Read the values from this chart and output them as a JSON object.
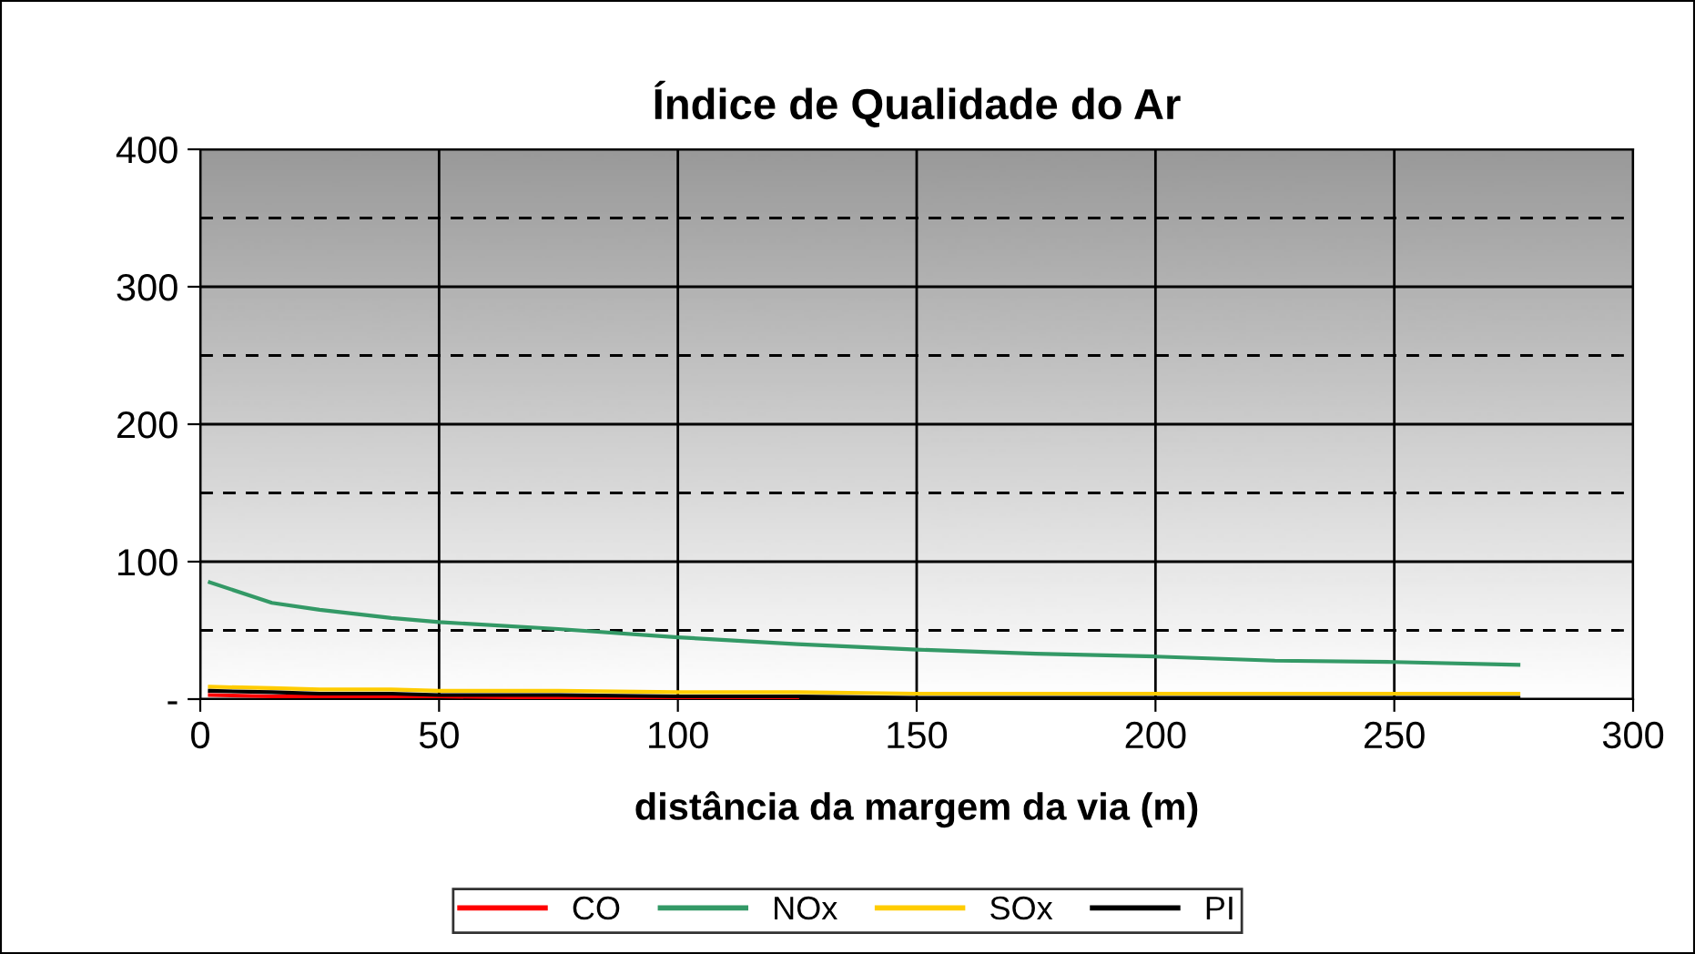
{
  "chart_data": {
    "type": "line",
    "title": "Índice de Qualidade do Ar",
    "xlabel": "distância da margem da via (m)",
    "xlim": [
      0,
      300
    ],
    "xticks": [
      0,
      50,
      100,
      150,
      200,
      250,
      300
    ],
    "ylim": [
      0,
      400
    ],
    "yticks": [
      {
        "value": 0,
        "label": "-"
      },
      100,
      200,
      300,
      400
    ],
    "grid": true,
    "legend": "bottom",
    "marker": "none",
    "line_style": "solid",
    "ref_lines": [
      {
        "axis": "y",
        "value": 50,
        "line_style": "dashed",
        "color": "#000000"
      },
      {
        "axis": "y",
        "value": 150,
        "line_style": "dashed",
        "color": "#000000"
      },
      {
        "axis": "y",
        "value": 250,
        "line_style": "dashed",
        "color": "#000000"
      },
      {
        "axis": "y",
        "value": 350,
        "line_style": "dashed",
        "color": "#000000"
      }
    ],
    "x": [
      2,
      15,
      25,
      40,
      50,
      75,
      100,
      125,
      150,
      175,
      200,
      225,
      250,
      276
    ],
    "series": [
      {
        "name": "CO",
        "color": "#ff0000",
        "values": [
          3,
          2,
          2,
          2,
          2,
          1,
          1,
          1,
          null,
          null,
          null,
          null,
          null,
          null
        ]
      },
      {
        "name": "NOx",
        "color": "#339966",
        "values": [
          85,
          70,
          65,
          59,
          56,
          51,
          45,
          40,
          36,
          33,
          31,
          28,
          27,
          25
        ]
      },
      {
        "name": "SOx",
        "color": "#ffcc00",
        "values": [
          9,
          8,
          7,
          7,
          6,
          6,
          5,
          5,
          4,
          4,
          4,
          4,
          4,
          4
        ]
      },
      {
        "name": "PI",
        "color": "#000000",
        "values": [
          6,
          5,
          4,
          4,
          3,
          3,
          2,
          2,
          1,
          1,
          1,
          1,
          1,
          1
        ]
      }
    ]
  }
}
